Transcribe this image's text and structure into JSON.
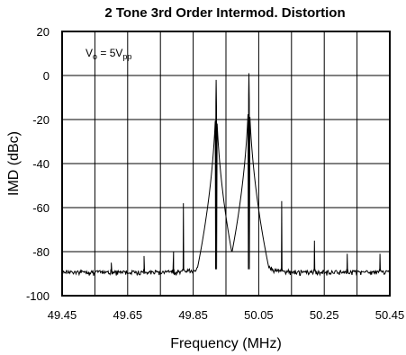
{
  "chart_data": {
    "type": "line",
    "title": "2 Tone 3rd Order Intermod. Distortion",
    "xlabel": "Frequency (MHz)",
    "ylabel": "IMD (dBc)",
    "xlim": [
      49.45,
      50.45
    ],
    "ylim": [
      -100,
      20
    ],
    "x_ticks": [
      "49.45",
      "49.65",
      "49.85",
      "50.05",
      "50.25",
      "50.45"
    ],
    "y_ticks": [
      "20",
      "0",
      "-20",
      "-40",
      "-60",
      "-80",
      "-100"
    ],
    "grid": true,
    "annotation": {
      "prefix": "V",
      "prefix_sub": "o",
      "middle": " = 5V",
      "suffix_sub": "pp"
    },
    "noise_floor_dbc": -90,
    "series": [
      {
        "values": [
          {
            "x": 49.45,
            "y": -90
          },
          {
            "x": 49.55,
            "y": -90
          },
          {
            "x": 49.6,
            "y": -85
          },
          {
            "x": 49.7,
            "y": -82
          },
          {
            "x": 49.79,
            "y": -80
          },
          {
            "x": 49.82,
            "y": -58
          },
          {
            "x": 49.86,
            "y": -83
          },
          {
            "x": 49.91,
            "y": -78
          },
          {
            "x": 49.92,
            "y": -2
          },
          {
            "x": 49.93,
            "y": -75
          },
          {
            "x": 49.97,
            "y": -84
          },
          {
            "x": 50.01,
            "y": -75
          },
          {
            "x": 50.02,
            "y": 1
          },
          {
            "x": 50.03,
            "y": -75
          },
          {
            "x": 50.07,
            "y": -86
          },
          {
            "x": 50.12,
            "y": -57
          },
          {
            "x": 50.22,
            "y": -75
          },
          {
            "x": 50.32,
            "y": -81
          },
          {
            "x": 50.42,
            "y": -81
          },
          {
            "x": 50.45,
            "y": -90
          }
        ]
      }
    ]
  }
}
